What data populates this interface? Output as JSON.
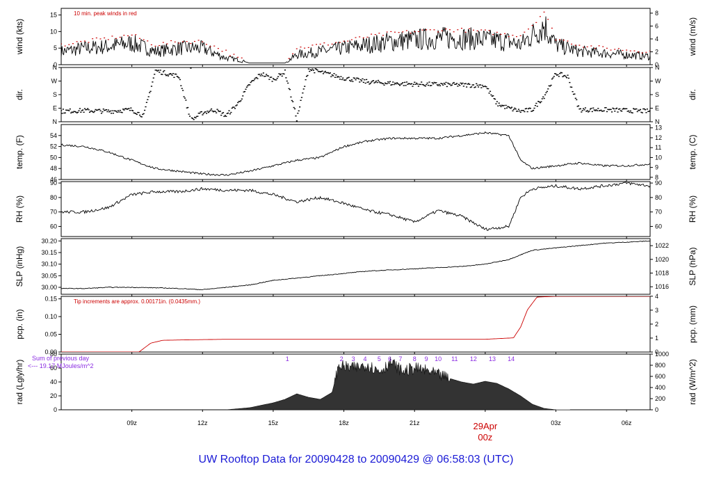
{
  "footer": {
    "title": "UW Rooftop Data for 20090428  to  20090429 @ 06:58:03  (UTC)"
  },
  "colors": {
    "line": "#000000",
    "red": "#cc0000",
    "purple": "#8a2be2",
    "blue": "#1a1ad6"
  },
  "chart_data": [
    {
      "type": "line",
      "id": "wind",
      "ylabel_left": "wind (kts)",
      "ylabel_right": "wind (m/s)",
      "annotation": "10 min. peak winds in red",
      "ylim": [
        0,
        17
      ],
      "left_ticks": [
        "0",
        "5",
        "10",
        "15"
      ],
      "right_ticks": [
        "0",
        "2",
        "4",
        "6",
        "8"
      ],
      "x": [
        6,
        7,
        8,
        9,
        10,
        11,
        12,
        13,
        13.5,
        14,
        14.5,
        15,
        15.5,
        16,
        17,
        18,
        19,
        20,
        21,
        22,
        23,
        24,
        25,
        25.5,
        26,
        26.5,
        27,
        28,
        29,
        30,
        31
      ],
      "series": [
        {
          "values": [
            4,
            5,
            5.5,
            6.5,
            4,
            5,
            5,
            2,
            1.5,
            0.5,
            0.5,
            0.5,
            0.5,
            3,
            4,
            5,
            6,
            7,
            7.5,
            8,
            8,
            7.5,
            7,
            6,
            9,
            12,
            6,
            4,
            3.5,
            3,
            2.5
          ]
        },
        {
          "values": [
            6,
            7,
            8,
            9,
            6,
            7,
            7,
            4,
            2,
            0.8,
            0.8,
            0.8,
            1,
            5,
            6,
            7,
            8.5,
            9.5,
            10,
            10.5,
            10.5,
            10,
            9,
            9,
            12,
            16,
            8,
            6,
            5,
            4.5,
            4
          ]
        }
      ]
    },
    {
      "type": "scatter",
      "id": "dir",
      "ylabel_left": "dir.",
      "ylabel_right": "dir.",
      "ylim": [
        0,
        360
      ],
      "left_ticks": [
        "N",
        "E",
        "S",
        "W",
        "N"
      ],
      "right_ticks": [
        "N",
        "E",
        "S",
        "W",
        "N"
      ],
      "x": [
        6,
        7,
        8,
        9,
        9.5,
        10,
        10.5,
        11,
        11.5,
        12,
        12.5,
        13,
        13.5,
        14,
        14.5,
        15,
        15.5,
        16,
        16.5,
        17,
        18,
        19,
        20,
        21,
        22,
        23,
        24,
        24.5,
        25,
        25.5,
        26,
        26.5,
        27,
        27.5,
        28,
        29,
        30,
        31
      ],
      "series": [
        {
          "values": [
            70,
            75,
            70,
            80,
            40,
            340,
            320,
            300,
            10,
            60,
            80,
            40,
            120,
            250,
            320,
            280,
            330,
            20,
            350,
            330,
            290,
            265,
            255,
            250,
            248,
            245,
            240,
            120,
            90,
            70,
            80,
            170,
            320,
            300,
            80,
            80,
            75,
            70
          ]
        }
      ]
    },
    {
      "type": "line",
      "id": "temp",
      "ylabel_left": "temp. (F)",
      "ylabel_right": "temp. (C)",
      "ylim": [
        46,
        56
      ],
      "left_ticks": [
        "46",
        "48",
        "50",
        "52",
        "54"
      ],
      "right_ticks": [
        "8",
        "9",
        "10",
        "11",
        "12",
        "13"
      ],
      "x": [
        6,
        7,
        8,
        9,
        10,
        11,
        12,
        13,
        14,
        15,
        16,
        17,
        18,
        19,
        20,
        21,
        22,
        23,
        24,
        25,
        25.5,
        26,
        27,
        28,
        29,
        30,
        31
      ],
      "series": [
        {
          "values": [
            52.3,
            52,
            51,
            49.5,
            48,
            47.5,
            47,
            46.8,
            47.5,
            48.5,
            49.5,
            50,
            52,
            53,
            53.5,
            53.5,
            53.5,
            54,
            54.5,
            54,
            49.5,
            48,
            48.5,
            49,
            48.5,
            48.5,
            48.8
          ]
        }
      ]
    },
    {
      "type": "line",
      "id": "rh",
      "ylabel_left": "RH (%)",
      "ylabel_right": "RH (%)",
      "ylim": [
        53,
        91
      ],
      "left_ticks": [
        "60",
        "70",
        "80",
        "90"
      ],
      "right_ticks": [
        "60",
        "70",
        "80",
        "90"
      ],
      "x": [
        6,
        7,
        8,
        9,
        10,
        11,
        12,
        13,
        14,
        15,
        16,
        17,
        18,
        19,
        20,
        21,
        22,
        23,
        24,
        25,
        25.5,
        26,
        27,
        28,
        29,
        30,
        31
      ],
      "series": [
        {
          "values": [
            70,
            70,
            73,
            82,
            84,
            84,
            86,
            85,
            85,
            82,
            77,
            80,
            76,
            71,
            68,
            63,
            71,
            67,
            58,
            60,
            80,
            86,
            88,
            86,
            88,
            90,
            88
          ]
        }
      ]
    },
    {
      "type": "line",
      "id": "slp",
      "ylabel_left": "SLP (inHg)",
      "ylabel_right": "SLP (hPa)",
      "ylim": [
        29.97,
        30.21
      ],
      "left_ticks": [
        "30.00",
        "30.05",
        "30.10",
        "30.15",
        "30.20"
      ],
      "right_ticks": [
        "1016",
        "1018",
        "1020",
        "1022"
      ],
      "x": [
        6,
        7,
        8,
        9,
        10,
        11,
        12,
        13,
        14,
        15,
        16,
        17,
        18,
        19,
        20,
        21,
        22,
        23,
        24,
        25,
        26,
        27,
        28,
        29,
        30,
        31
      ],
      "series": [
        {
          "values": [
            29.995,
            29.995,
            30.0,
            30.0,
            29.998,
            29.995,
            29.99,
            30.0,
            30.01,
            30.03,
            30.04,
            30.05,
            30.06,
            30.07,
            30.075,
            30.08,
            30.085,
            30.09,
            30.1,
            30.12,
            30.16,
            30.17,
            30.18,
            30.19,
            30.195,
            30.2
          ]
        }
      ]
    },
    {
      "type": "line",
      "id": "pcp",
      "ylabel_left": "pcp. (in)",
      "ylabel_right": "pcp. (mm)",
      "annotation": "Tip increments are approx. 0.00171in. (0.0435mm.)",
      "ylim": [
        0,
        0.157
      ],
      "left_ticks": [
        "0.00",
        "0.05",
        "0.10",
        "0.15"
      ],
      "right_ticks": [
        "0",
        "1",
        "2",
        "3",
        "4"
      ],
      "x": [
        6,
        8,
        9.3,
        9.8,
        10.3,
        11,
        13,
        16,
        20,
        24,
        25.2,
        25.5,
        25.8,
        26.2,
        27,
        31
      ],
      "series": [
        {
          "values": [
            0,
            0,
            0,
            0.025,
            0.033,
            0.034,
            0.036,
            0.036,
            0.036,
            0.036,
            0.04,
            0.07,
            0.12,
            0.155,
            0.157,
            0.157
          ]
        }
      ]
    },
    {
      "type": "area",
      "id": "rad",
      "ylabel_left": "rad (Lgly/hr)",
      "ylabel_right": "rad (W/m^2)",
      "annotation_line1": "Sum of previous day",
      "annotation_line2": "<--- 19.17 MJoules/m^2",
      "ylim": [
        0,
        80
      ],
      "left_ticks": [
        "0",
        "20",
        "40",
        "60",
        "80"
      ],
      "right_ticks": [
        "0",
        "200",
        "400",
        "600",
        "800",
        "1000"
      ],
      "marker_labels": [
        "1",
        "2",
        "3",
        "4",
        "5",
        "6",
        "7",
        "8",
        "9",
        "10",
        "11",
        "12",
        "13",
        "14"
      ],
      "marker_x": [
        15.6,
        17.9,
        18.4,
        18.9,
        19.5,
        19.95,
        20.4,
        21.0,
        21.5,
        22.0,
        22.7,
        23.5,
        24.3,
        25.1
      ],
      "x": [
        13,
        14,
        15,
        15.5,
        16,
        16.5,
        17,
        17.5,
        17.8,
        18,
        18.5,
        19,
        19.5,
        20,
        20.5,
        21,
        21.5,
        22,
        22.5,
        23,
        23.5,
        24,
        24.5,
        25,
        25.5,
        26,
        26.5,
        27
      ],
      "series": [
        {
          "values": [
            0,
            3,
            10,
            15,
            23,
            18,
            15,
            25,
            65,
            62,
            60,
            65,
            55,
            68,
            55,
            60,
            56,
            50,
            45,
            40,
            37,
            41,
            38,
            30,
            20,
            8,
            2,
            0
          ]
        }
      ]
    }
  ],
  "x_axis": {
    "ticks": [
      {
        "x": 9,
        "label": "09z"
      },
      {
        "x": 12,
        "label": "12z"
      },
      {
        "x": 15,
        "label": "15z"
      },
      {
        "x": 18,
        "label": "18z"
      },
      {
        "x": 21,
        "label": "21z"
      },
      {
        "x": 24,
        "label": "00z"
      },
      {
        "x": 27,
        "label": "03z"
      },
      {
        "x": 30,
        "label": "06z"
      }
    ],
    "xlim": [
      6,
      31
    ],
    "date_marker": {
      "x": 24,
      "label_top": "29Apr",
      "label_bottom": "00z"
    }
  }
}
